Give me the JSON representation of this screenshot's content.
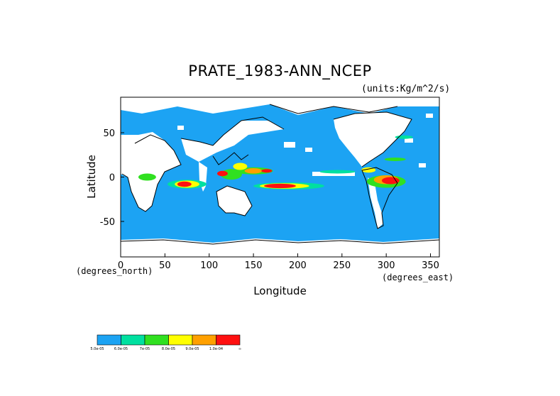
{
  "title": "PRATE_1983-ANN_NCEP",
  "units": "(units:Kg/m^2/s)",
  "axes": {
    "xlabel": "Longitude",
    "ylabel": "Latitude",
    "x_unit": "(degrees_east)",
    "y_unit": "(degrees_north)",
    "xlim": [
      0,
      360
    ],
    "ylim": [
      -90,
      90
    ],
    "x_ticks": [
      "0",
      "50",
      "100",
      "150",
      "200",
      "250",
      "300",
      "350"
    ],
    "y_ticks": [
      "50",
      "0",
      "-50"
    ]
  },
  "colorbar": {
    "colors": [
      "#1ca3f3",
      "#00e0a0",
      "#30e020",
      "#ffff00",
      "#ffa000",
      "#ff1010"
    ],
    "labels": [
      "5.0e-05",
      "6.0e-05",
      "7e-05",
      "8.0e-05",
      "9.0e-05",
      "1.0e-04",
      "∞"
    ]
  },
  "map": {
    "ocean_color": "#1ca3f3",
    "land_color": "#ffffff",
    "coast_color": "#000000"
  }
}
